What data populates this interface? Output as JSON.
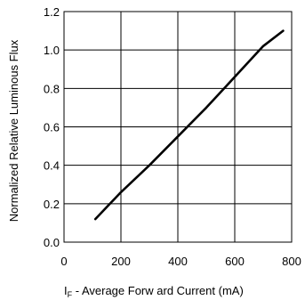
{
  "chart_data": {
    "type": "line",
    "title": "",
    "xlabel": "I F - Average Forw ard Current (mA)",
    "xlabel_main": "I",
    "xlabel_sub": "F",
    "xlabel_rest": " - Average Forw ard Current (mA)",
    "ylabel": "Normalized Relative Luminous Flux",
    "xlim": [
      0,
      800
    ],
    "ylim": [
      0,
      1.2
    ],
    "x_ticks": [
      "0",
      "200",
      "400",
      "600",
      "800"
    ],
    "y_ticks": [
      "0.0",
      "0.2",
      "0.4",
      "0.6",
      "0.8",
      "1.0",
      "1.2"
    ],
    "grid": true,
    "series": [
      {
        "x": [
          110,
          200,
          300,
          400,
          500,
          600,
          700,
          770
        ],
        "y": [
          0.12,
          0.26,
          0.4,
          0.55,
          0.7,
          0.86,
          1.02,
          1.1
        ]
      }
    ],
    "colors": {
      "line": "#000000",
      "grid": "#000000",
      "background": "#ffffff"
    }
  }
}
